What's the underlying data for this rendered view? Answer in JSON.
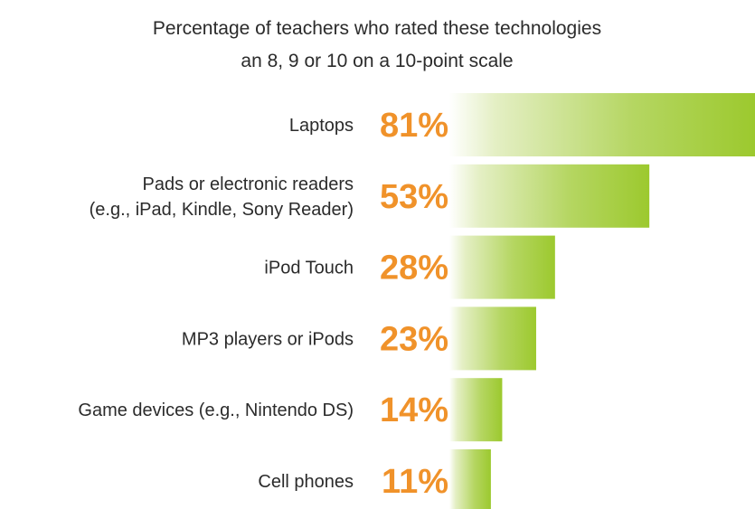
{
  "chart_data": {
    "type": "bar",
    "orientation": "horizontal",
    "title": [
      "Percentage of teachers who rated these technologies",
      "an 8, 9 or 10 on a 10-point scale"
    ],
    "categories": [
      [
        "Laptops"
      ],
      [
        "Pads or electronic readers",
        "(e.g., iPad, Kindle, Sony Reader)"
      ],
      [
        "iPod Touch"
      ],
      [
        "MP3 players or iPods"
      ],
      [
        "Game devices (e.g., Nintendo DS)"
      ],
      [
        "Cell phones"
      ]
    ],
    "values": [
      81,
      53,
      28,
      23,
      14,
      11
    ],
    "value_labels": [
      "81%",
      "53%",
      "28%",
      "23%",
      "14%",
      "11%"
    ],
    "unit": "%",
    "xlim": [
      0,
      81
    ],
    "grid": false,
    "legend": "none",
    "colors": {
      "bar_start": "#ffffff",
      "bar_end": "#9cc92e",
      "value_text": "#f0922a",
      "label_text": "#2b2b2b"
    }
  }
}
